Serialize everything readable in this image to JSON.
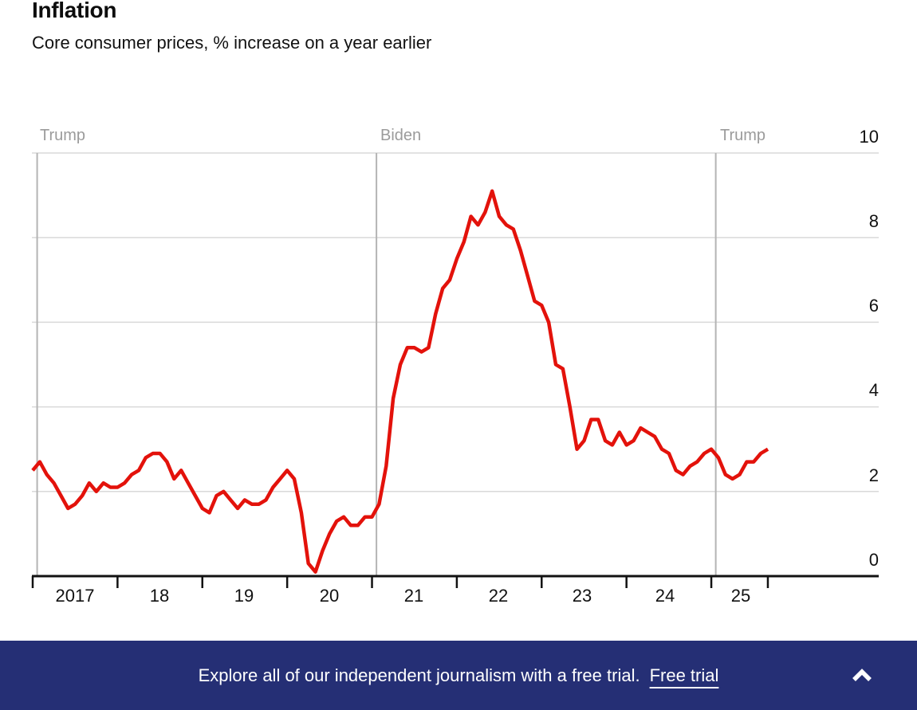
{
  "header": {
    "title": "Inflation",
    "subtitle": "Core consumer prices, % increase on a year earlier"
  },
  "chart_data": {
    "type": "line",
    "title": "Inflation",
    "subtitle": "Core consumer prices, % increase on a year earlier",
    "x_start_month": "2017-01",
    "x_end_month": "2025-09",
    "frequency": "monthly",
    "series": [
      {
        "name": "Core consumer prices, % increase on a year earlier",
        "color": "#e3120b",
        "values": [
          2.5,
          2.7,
          2.4,
          2.2,
          1.9,
          1.6,
          1.7,
          1.9,
          2.2,
          2.0,
          2.2,
          2.1,
          2.1,
          2.2,
          2.4,
          2.5,
          2.8,
          2.9,
          2.9,
          2.7,
          2.3,
          2.5,
          2.2,
          1.9,
          1.6,
          1.5,
          1.9,
          2.0,
          1.8,
          1.6,
          1.8,
          1.7,
          1.7,
          1.8,
          2.1,
          2.3,
          2.5,
          2.3,
          1.5,
          0.3,
          0.1,
          0.6,
          1.0,
          1.3,
          1.4,
          1.2,
          1.2,
          1.4,
          1.4,
          1.7,
          2.6,
          4.2,
          5.0,
          5.4,
          5.4,
          5.3,
          5.4,
          6.2,
          6.8,
          7.0,
          7.5,
          7.9,
          8.5,
          8.3,
          8.6,
          9.1,
          8.5,
          8.3,
          8.2,
          7.7,
          7.1,
          6.5,
          6.4,
          6.0,
          5.0,
          4.9,
          4.0,
          3.0,
          3.2,
          3.7,
          3.7,
          3.2,
          3.1,
          3.4,
          3.1,
          3.2,
          3.5,
          3.4,
          3.3,
          3.0,
          2.9,
          2.5,
          2.4,
          2.6,
          2.7,
          2.9,
          3.0,
          2.8,
          2.4,
          2.3,
          2.4,
          2.7,
          2.7,
          2.9,
          3.0
        ]
      }
    ],
    "x_tick_labels": [
      "2017",
      "18",
      "19",
      "20",
      "21",
      "22",
      "23",
      "24",
      "25"
    ],
    "y_tick_labels": [
      "0",
      "2",
      "4",
      "6",
      "8",
      "10"
    ],
    "ylim": [
      0,
      10
    ],
    "grid": "horizontal",
    "legend": "none",
    "annotations": [
      {
        "label": "Trump",
        "month_index": 0.63
      },
      {
        "label": "Biden",
        "month_index": 48.63
      },
      {
        "label": "Trump",
        "month_index": 96.63
      }
    ]
  },
  "banner": {
    "message": "Explore all of our independent journalism with a free trial.",
    "link_label": "Free trial",
    "collapse_icon": "chevron-up",
    "background_color": "#252f75",
    "text_color": "#ffffff"
  }
}
